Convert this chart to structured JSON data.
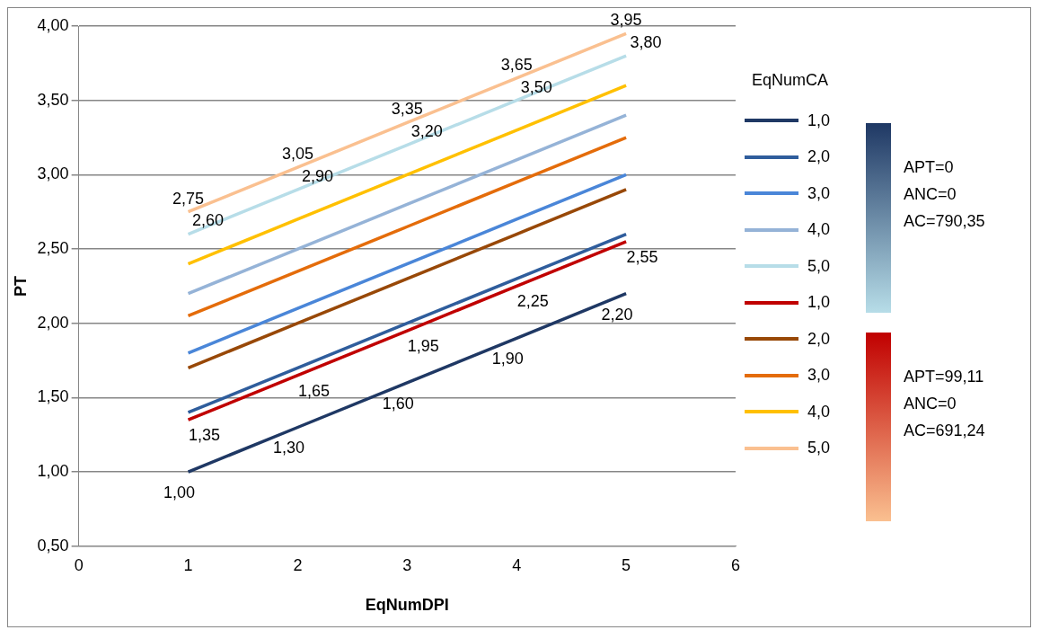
{
  "chart_data": {
    "type": "line",
    "xlabel": "EqNumDPI",
    "ylabel": "PT",
    "legend_title": "EqNumCA",
    "legend": "right",
    "grid": "y",
    "marker": "none",
    "line_style": "solid",
    "x": [
      1,
      2,
      3,
      4,
      5
    ],
    "xlim": [
      0,
      6
    ],
    "xticks": [
      0,
      1,
      2,
      3,
      4,
      5,
      6
    ],
    "ylim": [
      0.5,
      4
    ],
    "yticks": [
      {
        "value": 0.5,
        "label": "0,50"
      },
      {
        "value": 1,
        "label": "1,00"
      },
      {
        "value": 1.5,
        "label": "1,50"
      },
      {
        "value": 2,
        "label": "2,00"
      },
      {
        "value": 2.5,
        "label": "2,50"
      },
      {
        "value": 3,
        "label": "3,00"
      },
      {
        "value": 3.5,
        "label": "3,50"
      },
      {
        "value": 4,
        "label": "4,00"
      }
    ],
    "series": [
      {
        "name": "1,0",
        "color": "#1f3864",
        "values": [
          1.0,
          1.3,
          1.6,
          1.9,
          2.2
        ],
        "value_labels": [
          "1,00",
          "1,30",
          "1,60",
          "1,90",
          "2,20"
        ]
      },
      {
        "name": "2,0",
        "color": "#2f5d9c",
        "values": [
          1.4,
          1.7,
          2.0,
          2.3,
          2.6
        ]
      },
      {
        "name": "3,0",
        "color": "#4a86d8",
        "values": [
          1.8,
          2.1,
          2.4,
          2.7,
          3.0
        ]
      },
      {
        "name": "4,0",
        "color": "#95b3d7",
        "values": [
          2.2,
          2.5,
          2.8,
          3.1,
          3.4
        ]
      },
      {
        "name": "5,0",
        "color": "#b7dde8",
        "values": [
          2.6,
          2.9,
          3.2,
          3.5,
          3.8
        ],
        "value_labels": [
          "2,60",
          "2,90",
          "3,20",
          "3,50",
          "3,80"
        ]
      },
      {
        "name": "1,0",
        "color": "#c00000",
        "values": [
          1.35,
          1.65,
          1.95,
          2.25,
          2.55
        ],
        "value_labels": [
          "1,35",
          "1,65",
          "1,95",
          "2,25",
          "2,55"
        ]
      },
      {
        "name": "2,0",
        "color": "#984807",
        "values": [
          1.7,
          2.0,
          2.3,
          2.6,
          2.9
        ]
      },
      {
        "name": "3,0",
        "color": "#e46c0a",
        "values": [
          2.05,
          2.35,
          2.65,
          2.95,
          3.25
        ]
      },
      {
        "name": "4,0",
        "color": "#ffc000",
        "values": [
          2.4,
          2.7,
          3.0,
          3.3,
          3.6
        ]
      },
      {
        "name": "5,0",
        "color": "#fac090",
        "values": [
          2.75,
          3.05,
          3.35,
          3.65,
          3.95
        ],
        "value_labels": [
          "2,75",
          "3,05",
          "3,35",
          "3,65",
          "3,95"
        ]
      }
    ],
    "annotations": [
      "APT=0\nANC=0\nAC=790,35",
      "APT=99,11\nANC=0\nAC=691,24"
    ]
  }
}
